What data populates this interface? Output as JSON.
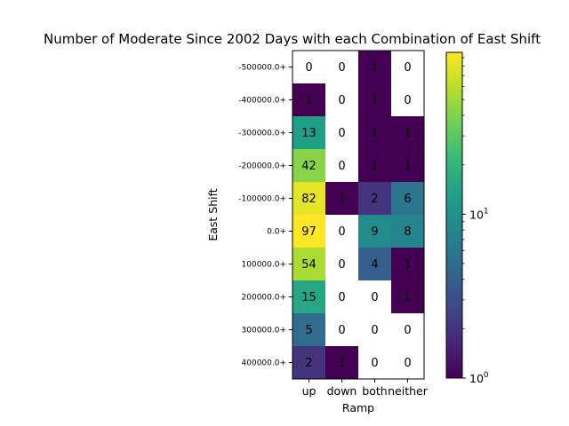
{
  "chart_data": {
    "type": "heatmap",
    "title": "Number of Moderate Since 2002 Days with each Combination of East Shift",
    "xlabel": "Ramp",
    "ylabel": "East Shift",
    "x_categories": [
      "up",
      "down",
      "both",
      "neither"
    ],
    "y_categories": [
      "-500000.0+",
      "-400000.0+",
      "-300000.0+",
      "-200000.0+",
      "-100000.0+",
      "0.0+",
      "100000.0+",
      "200000.0+",
      "300000.0+",
      "400000.0+"
    ],
    "values": [
      [
        0,
        0,
        1,
        0
      ],
      [
        1,
        0,
        1,
        0
      ],
      [
        13,
        0,
        1,
        1
      ],
      [
        42,
        0,
        1,
        1
      ],
      [
        82,
        1,
        2,
        6
      ],
      [
        97,
        0,
        9,
        8
      ],
      [
        54,
        0,
        4,
        1
      ],
      [
        15,
        0,
        0,
        1
      ],
      [
        5,
        0,
        0,
        0
      ],
      [
        2,
        1,
        0,
        0
      ]
    ],
    "colorscale": "viridis",
    "color_scale_type": "log",
    "color_range": [
      1,
      97
    ],
    "zero_color": "#ffffff",
    "colorbar_ticks": [
      {
        "value": 1,
        "base": "10",
        "exp": "0"
      },
      {
        "value": 10,
        "base": "10",
        "exp": "1"
      }
    ]
  }
}
